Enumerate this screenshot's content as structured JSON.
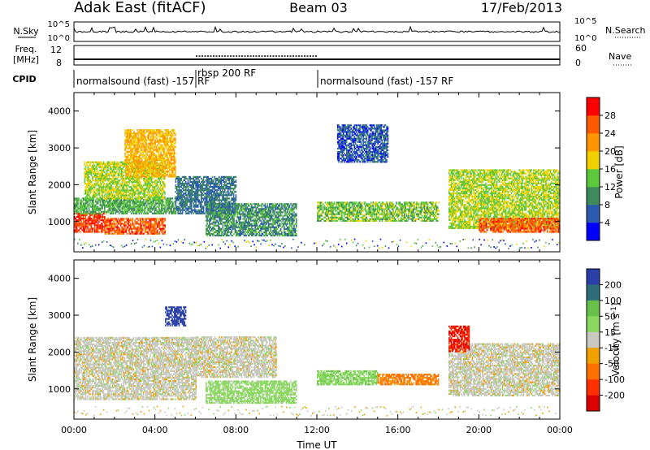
{
  "header": {
    "radar": "Adak East (fitACF)",
    "beam": "Beam 03",
    "date": "17/Feb/2013"
  },
  "colors": {
    "power": [
      "#0000ff",
      "#2a5bb0",
      "#3f8a5b",
      "#5cc83c",
      "#f0d000",
      "#ff9500",
      "#ff5a00",
      "#ff0000"
    ],
    "velocity": [
      "#2a3fa8",
      "#2e6e78",
      "#66c04a",
      "#8ad860",
      "#c8c8c0",
      "#f0a000",
      "#ff7000",
      "#ff3000",
      "#dd0000"
    ]
  },
  "panels": {
    "nsky": {
      "label": "N.Sky",
      "right_label": "N.Search",
      "tick_top": "10^5",
      "tick_bottom": "10^0",
      "right_tick_top": "10^5",
      "right_tick_bottom": "10^0"
    },
    "freq": {
      "label_line1": "Freq.",
      "label_line2": "[MHz]",
      "tick_top": "12",
      "tick_bottom": "8",
      "right_label": "Nave",
      "right_tick_top": "60",
      "right_tick_bottom": "0"
    },
    "cpid": {
      "label": "CPID",
      "segments": [
        {
          "name": "normalsound (fast) -157 RF",
          "start": 0,
          "end": 6
        },
        {
          "name": "rbsp 200 RF",
          "start": 6,
          "end": 12
        },
        {
          "name": "normalsound (fast) -157 RF",
          "start": 12,
          "end": 24
        }
      ]
    }
  },
  "chart_data": [
    {
      "type": "heatmap",
      "name": "Power",
      "xlabel": "Time UT",
      "ylabel": "Slant Range [km]",
      "xlim": [
        0,
        24
      ],
      "ylim": [
        180,
        4500
      ],
      "xticks": [
        "00:00",
        "04:00",
        "08:00",
        "12:00",
        "16:00",
        "20:00",
        "00:00"
      ],
      "yticks": [
        1000,
        2000,
        3000,
        4000
      ],
      "colorbar": {
        "label": "Power [dB]",
        "ticks": [
          4,
          8,
          12,
          16,
          20,
          24,
          28
        ],
        "range": [
          0,
          32
        ]
      },
      "regions": [
        {
          "t": [
            0,
            1.5
          ],
          "r": [
            700,
            1200
          ],
          "value": 28
        },
        {
          "t": [
            1.5,
            4.5
          ],
          "r": [
            650,
            1100
          ],
          "value": 26
        },
        {
          "t": [
            0,
            5
          ],
          "r": [
            1200,
            1650
          ],
          "value": 12
        },
        {
          "t": [
            0.5,
            4.5
          ],
          "r": [
            1600,
            2600
          ],
          "value": 16
        },
        {
          "t": [
            2.5,
            5
          ],
          "r": [
            2200,
            3500
          ],
          "value": 20
        },
        {
          "t": [
            5,
            8
          ],
          "r": [
            1200,
            2200
          ],
          "value": 8
        },
        {
          "t": [
            6.5,
            11
          ],
          "r": [
            600,
            1500
          ],
          "value": 10
        },
        {
          "t": [
            12,
            18
          ],
          "r": [
            1000,
            1500
          ],
          "value": 14
        },
        {
          "t": [
            13,
            15.5
          ],
          "r": [
            2600,
            3600
          ],
          "value": 6
        },
        {
          "t": [
            18.5,
            24
          ],
          "r": [
            800,
            2400
          ],
          "value": 16
        },
        {
          "t": [
            20,
            24
          ],
          "r": [
            700,
            1100
          ],
          "value": 26
        }
      ]
    },
    {
      "type": "heatmap",
      "name": "Velocity",
      "xlabel": "Time UT",
      "ylabel": "Slant Range [km]",
      "xlim": [
        0,
        24
      ],
      "ylim": [
        180,
        4500
      ],
      "xticks": [
        "00:00",
        "04:00",
        "08:00",
        "12:00",
        "16:00",
        "20:00",
        "00:00"
      ],
      "yticks": [
        1000,
        2000,
        3000,
        4000
      ],
      "colorbar": {
        "label": "Velocity [m s^-1]",
        "ticks": [
          200,
          100,
          50,
          15,
          -15,
          -50,
          -100,
          -200
        ]
      },
      "regions": [
        {
          "t": [
            0,
            6
          ],
          "r": [
            700,
            2400
          ],
          "value": 0
        },
        {
          "t": [
            6,
            10
          ],
          "r": [
            1300,
            2400
          ],
          "value": 0
        },
        {
          "t": [
            4.5,
            5.5
          ],
          "r": [
            2700,
            3200
          ],
          "value": 220
        },
        {
          "t": [
            6.5,
            11
          ],
          "r": [
            600,
            1200
          ],
          "value": 30
        },
        {
          "t": [
            12,
            15
          ],
          "r": [
            1100,
            1500
          ],
          "value": 40
        },
        {
          "t": [
            15,
            18
          ],
          "r": [
            1100,
            1400
          ],
          "value": -60
        },
        {
          "t": [
            18.5,
            24
          ],
          "r": [
            800,
            2200
          ],
          "value": 0
        },
        {
          "t": [
            18.5,
            19.5
          ],
          "r": [
            2000,
            2700
          ],
          "value": -200
        }
      ]
    }
  ]
}
